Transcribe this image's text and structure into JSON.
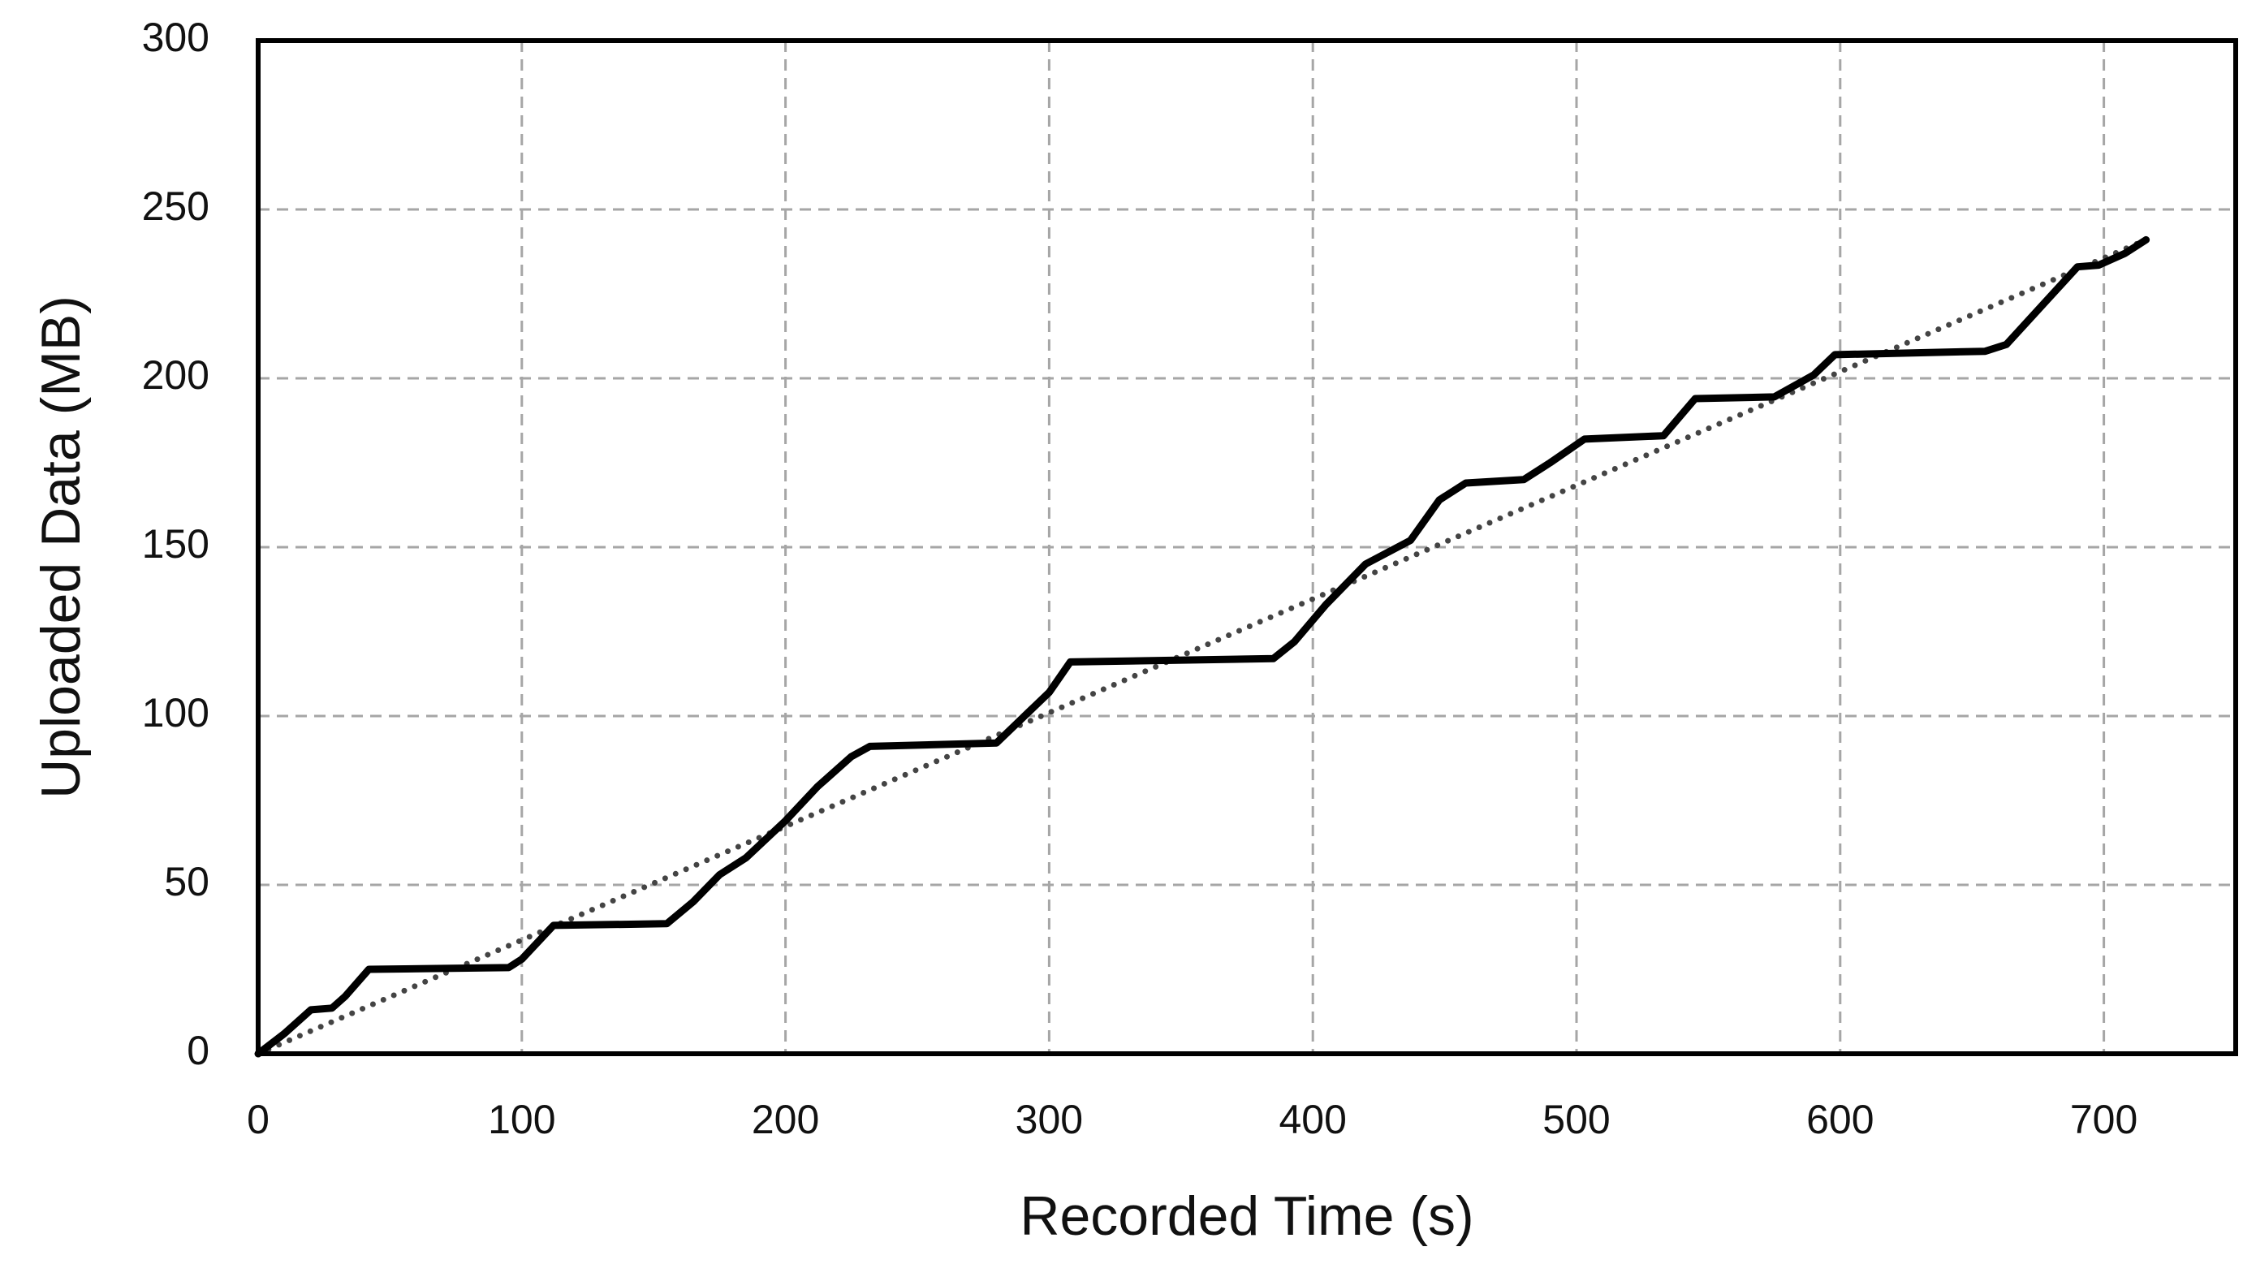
{
  "chart_data": {
    "type": "line",
    "x_label": "Recorded Time (s)",
    "y_label": "Uploaded Data (MB)",
    "xlim": [
      0,
      750
    ],
    "xticks": [
      0,
      100,
      200,
      300,
      400,
      500,
      600,
      700
    ],
    "ylim": [
      0,
      300
    ],
    "yticks": [
      0,
      50,
      100,
      150,
      200,
      250,
      300
    ],
    "grid": true,
    "series": [
      {
        "color": "#000000",
        "style": "solid",
        "x": [
          0,
          10,
          20,
          28,
          33,
          42,
          95,
          100,
          112,
          155,
          165,
          175,
          185,
          200,
          212,
          225,
          232,
          280,
          292,
          300,
          308,
          385,
          393,
          405,
          420,
          437,
          448,
          458,
          480,
          490,
          503,
          533,
          545,
          575,
          590,
          598,
          655,
          663,
          690,
          698,
          708,
          716
        ],
        "values": [
          0,
          6,
          13,
          13.5,
          17,
          25,
          25.5,
          28,
          38,
          38.5,
          45,
          53,
          58,
          69,
          79,
          88,
          91,
          92,
          101,
          107,
          116,
          117,
          122,
          133,
          145,
          152,
          164,
          169,
          170,
          175,
          182,
          183,
          194,
          194.5,
          201,
          207,
          208,
          210,
          233,
          233.5,
          237,
          241
        ]
      },
      {
        "color": "#444444",
        "style": "dotted",
        "x": [
          0,
          716
        ],
        "values": [
          0,
          241
        ]
      }
    ]
  }
}
